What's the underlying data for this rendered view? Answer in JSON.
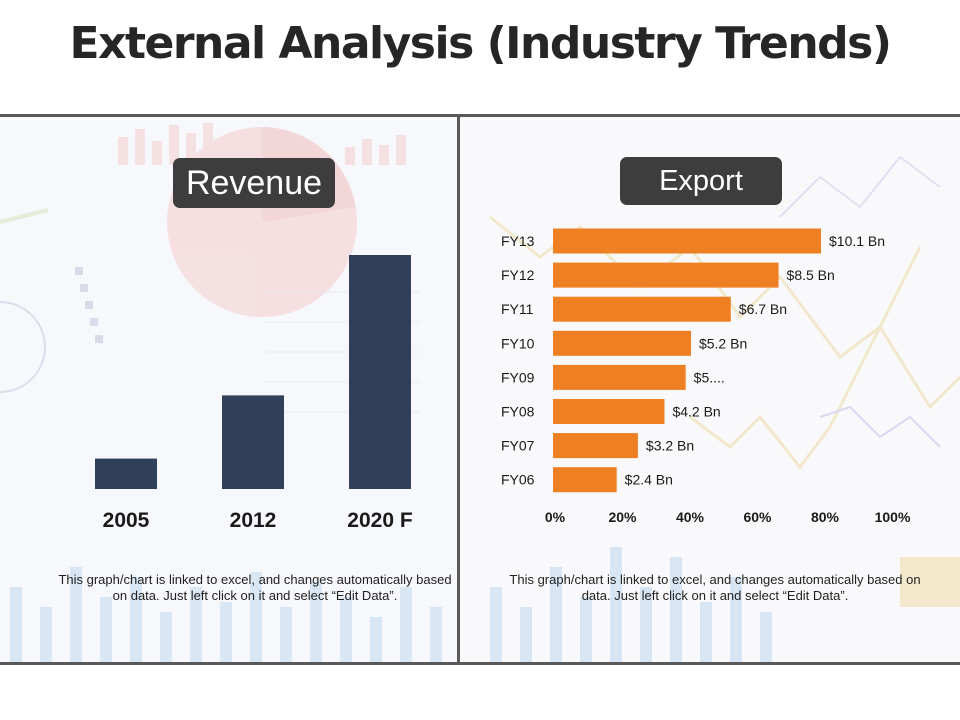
{
  "page": {
    "title": "External Analysis (Industry Trends)"
  },
  "revenue_panel": {
    "heading": "Revenue",
    "note": "This graph/chart is linked to excel, and changes automatically based on data. Just left click on it and select “Edit Data”."
  },
  "export_panel": {
    "heading": "Export",
    "note": "This graph/chart is linked to excel, and changes automatically based on data. Just left click on it and select “Edit Data”."
  },
  "colors": {
    "revenue_bar": "#2f4058",
    "export_bar": "#ee7f22",
    "heading_pill": "#3d3d3d",
    "divider": "#595959"
  },
  "chart_data": [
    {
      "type": "bar",
      "orientation": "vertical",
      "categories": [
        "2005",
        "2012",
        "2020 F"
      ],
      "values": [
        13,
        40,
        100
      ],
      "ylim": [
        0,
        100
      ],
      "grid": false
    },
    {
      "type": "bar",
      "orientation": "horizontal",
      "categories": [
        "FY13",
        "FY12",
        "FY11",
        "FY10",
        "FY09",
        "FY08",
        "FY07",
        "FY06"
      ],
      "values": [
        10.1,
        8.5,
        6.7,
        5.2,
        5.0,
        4.2,
        3.2,
        2.4
      ],
      "data_labels": [
        "$10.1 Bn",
        "$8.5 Bn",
        "$6.7 Bn",
        "$5.2 Bn",
        "$5....",
        "$4.2 Bn",
        "$3.2 Bn",
        "$2.4 Bn"
      ],
      "x_ticks": [
        "0%",
        "20%",
        "40%",
        "60%",
        "80%",
        "100%"
      ],
      "grid": false
    }
  ]
}
